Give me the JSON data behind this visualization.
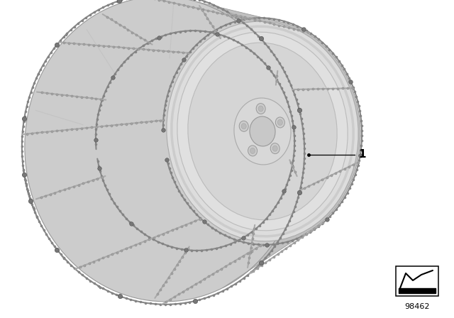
{
  "background_color": "#ffffff",
  "label_number": "1",
  "diagram_number": "98462",
  "fig_width": 6.4,
  "fig_height": 4.48,
  "dpi": 100,
  "tire_color": "#cccccc",
  "tire_dark": "#b0b0b0",
  "rim_color": "#e0e0e0",
  "rim_light": "#f0f0f0",
  "rim_dark": "#c0c0c0",
  "chain_color": "#aaaaaa",
  "chain_dark": "#888888",
  "hub_color": "#d8d8d8"
}
